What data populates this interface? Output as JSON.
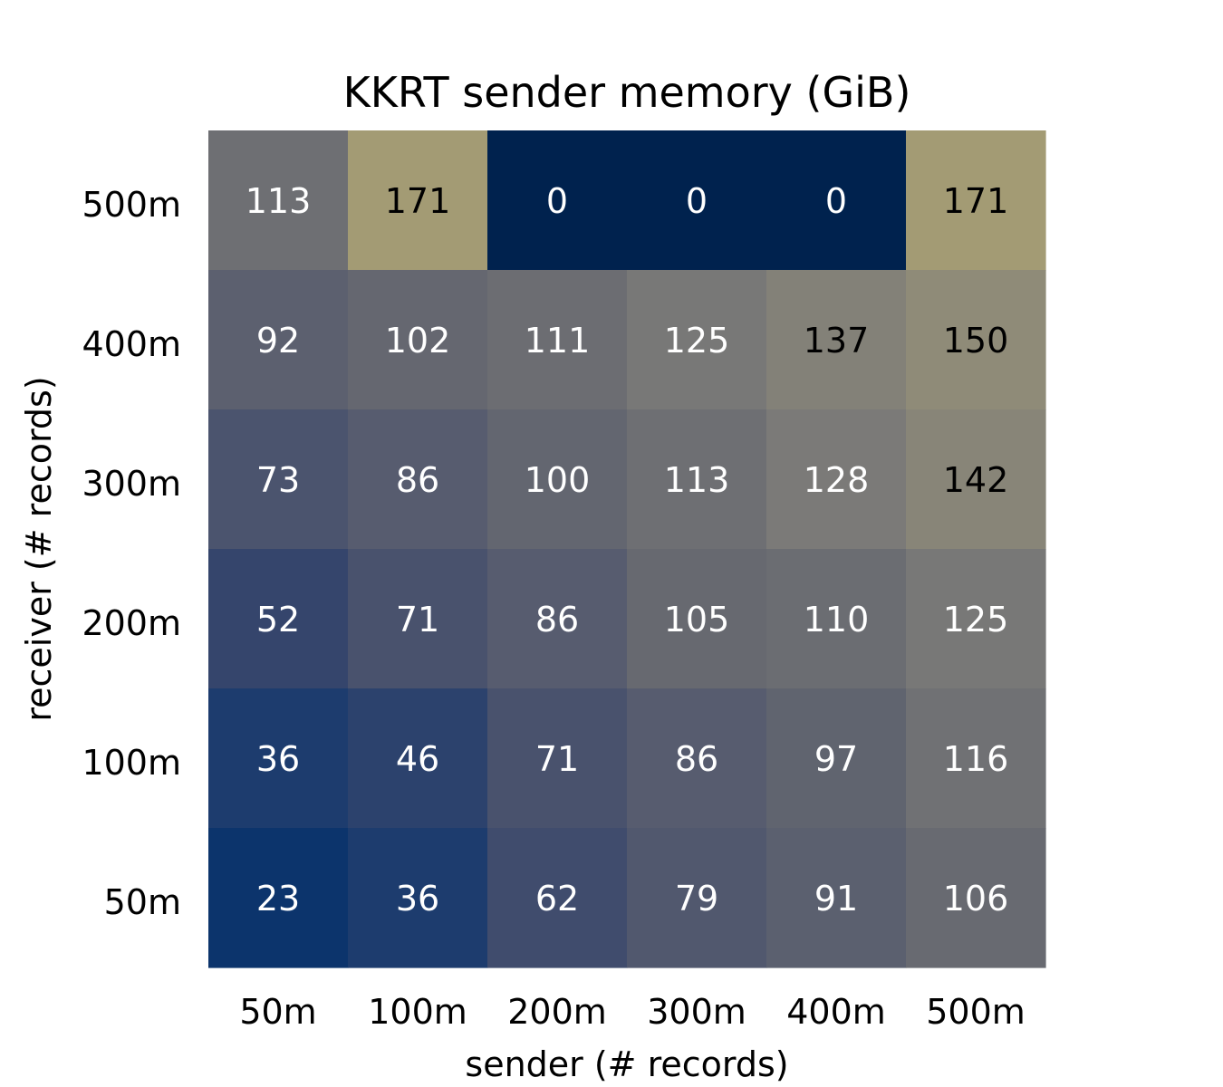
{
  "chart_data": {
    "type": "heatmap",
    "title": "KKRT sender memory (GiB)",
    "xlabel": "sender (# records)",
    "ylabel": "receiver (# records)",
    "x_categories": [
      "50m",
      "100m",
      "200m",
      "300m",
      "400m",
      "500m"
    ],
    "y_categories": [
      "500m",
      "400m",
      "300m",
      "200m",
      "100m",
      "50m"
    ],
    "values": [
      [
        113,
        171,
        0,
        0,
        0,
        171
      ],
      [
        92,
        102,
        111,
        125,
        137,
        150
      ],
      [
        73,
        86,
        100,
        113,
        128,
        142
      ],
      [
        52,
        71,
        86,
        105,
        110,
        125
      ],
      [
        36,
        46,
        71,
        86,
        97,
        116
      ],
      [
        23,
        36,
        62,
        79,
        91,
        106
      ]
    ],
    "color_range": [
      0,
      171
    ],
    "colormap": "cividis",
    "colors": {
      "low": "#00224e",
      "high": "#a59c74",
      "text_light": "#ffffff",
      "text_dark": "#000000"
    },
    "grid": false,
    "legend": "none"
  }
}
